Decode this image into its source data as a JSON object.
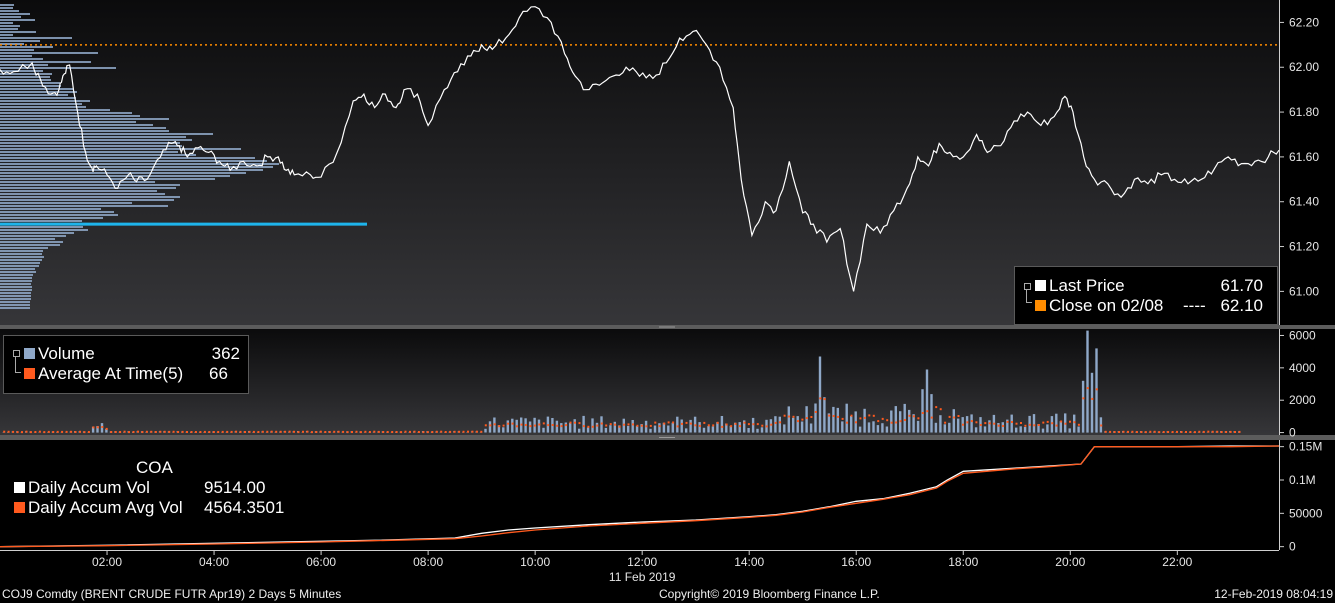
{
  "footer": {
    "ticker": "COJ9 Comdty (BRENT CRUDE FUTR  Apr19) 2 Days 5 Minutes",
    "copyright": "Copyright© 2019 Bloomberg Finance L.P.",
    "timestamp": "12-Feb-2019 08:04:19"
  },
  "colors": {
    "price_line": "#ffffff",
    "close_line": "#ff8c00",
    "volume_profile": "#8fa8c8",
    "poc_line": "#1eb4ec",
    "volume_bar": "#8fa8c8",
    "avg_dot": "#ff5a1e",
    "accum_vol": "#ffffff",
    "accum_avg": "#ff5a1e"
  },
  "legends": {
    "price": {
      "last_label": "Last Price",
      "last_value": "61.70",
      "close_label": "Close on 02/08",
      "close_sep": "----",
      "close_value": "62.10"
    },
    "volume": {
      "vol_label": "Volume",
      "vol_value": "362",
      "avg_label": "Average At Time(5)",
      "avg_value": "66"
    },
    "accum": {
      "header": "COA",
      "daily_label": "Daily Accum Vol",
      "daily_value": "9514.00",
      "avg_label": "Daily Accum Avg Vol",
      "avg_value": "4564.3501"
    }
  },
  "chart_data": [
    {
      "type": "line",
      "panel": "price",
      "xlim": [
        0.0,
        23.9
      ],
      "ylim": [
        60.85,
        62.3
      ],
      "yticks": [
        "62.20",
        "62.00",
        "61.80",
        "61.60",
        "61.40",
        "61.20",
        "61.00"
      ],
      "x_date_label": "11 Feb 2019",
      "xticks": [
        "02:00",
        "04:00",
        "06:00",
        "08:00",
        "10:00",
        "12:00",
        "14:00",
        "16:00",
        "18:00",
        "20:00",
        "22:00"
      ],
      "close_value": 62.1,
      "poc_value": 61.3,
      "series": [
        {
          "name": "Last Price",
          "x": [
            0.0,
            0.25,
            0.6,
            0.75,
            0.95,
            1.1,
            1.2,
            1.3,
            1.45,
            1.6,
            1.72,
            1.8,
            2.0,
            2.2,
            2.4,
            2.55,
            2.75,
            3.0,
            3.2,
            3.35,
            3.5,
            3.7,
            3.9,
            4.1,
            4.3,
            4.55,
            4.8,
            5.0,
            5.2,
            5.35,
            5.5,
            5.8,
            6.0,
            6.3,
            6.6,
            6.8,
            7.0,
            7.2,
            7.4,
            7.55,
            7.8,
            8.0,
            8.3,
            8.55,
            8.8,
            9.0,
            9.2,
            9.45,
            9.7,
            10.0,
            10.3,
            10.55,
            10.75,
            10.95,
            11.2,
            11.45,
            11.7,
            11.95,
            12.2,
            12.45,
            12.7,
            12.95,
            13.2,
            13.45,
            13.7,
            13.85,
            14.05,
            14.3,
            14.5,
            14.75,
            15.0,
            15.2,
            15.45,
            15.7,
            15.95,
            16.2,
            16.45,
            16.7,
            16.95,
            17.15,
            17.35,
            17.55,
            17.75,
            18.0,
            18.25,
            18.45,
            18.7,
            18.95,
            19.2,
            19.45,
            19.7,
            19.9,
            20.05,
            20.25,
            20.45,
            20.7,
            20.95,
            21.2,
            21.45,
            21.7,
            21.95,
            22.2,
            22.45,
            22.7,
            22.95,
            23.2,
            23.45,
            23.7,
            23.9
          ],
          "y": [
            61.99,
            61.98,
            62.02,
            61.95,
            61.88,
            61.9,
            61.97,
            62.01,
            61.8,
            61.62,
            61.55,
            61.56,
            61.52,
            61.46,
            61.52,
            61.49,
            61.5,
            61.6,
            61.66,
            61.65,
            61.6,
            61.64,
            61.62,
            61.58,
            61.54,
            61.58,
            61.56,
            61.6,
            61.6,
            61.54,
            61.52,
            61.52,
            61.51,
            61.62,
            61.85,
            61.88,
            61.82,
            61.88,
            61.82,
            61.9,
            61.88,
            61.74,
            61.9,
            61.98,
            62.05,
            62.1,
            62.08,
            62.13,
            62.22,
            62.27,
            62.2,
            62.06,
            61.96,
            61.9,
            61.92,
            61.96,
            62.0,
            61.96,
            61.95,
            62.02,
            62.13,
            62.16,
            62.1,
            62.0,
            61.82,
            61.5,
            61.25,
            61.4,
            61.36,
            61.58,
            61.35,
            61.3,
            61.22,
            61.28,
            61.0,
            61.3,
            61.26,
            61.36,
            61.46,
            61.6,
            61.56,
            61.66,
            61.62,
            61.6,
            61.7,
            61.62,
            61.65,
            61.76,
            61.8,
            61.74,
            61.78,
            61.87,
            61.8,
            61.6,
            61.5,
            61.48,
            61.42,
            61.5,
            61.48,
            61.52,
            61.5,
            61.48,
            61.5,
            61.55,
            61.6,
            61.57,
            61.58,
            61.6,
            61.63
          ]
        }
      ]
    },
    {
      "type": "bar",
      "panel": "volume",
      "ylim": [
        -150,
        6400
      ],
      "yticks": [
        "6000",
        "4000",
        "2000",
        "0"
      ],
      "series": [
        {
          "name": "Volume"
        },
        {
          "name": "Average At Time(5)"
        }
      ]
    },
    {
      "type": "line",
      "panel": "accum",
      "ylim": [
        -5000,
        160000
      ],
      "yticks": [
        "0.15M",
        "0.1M",
        "50000",
        "0"
      ],
      "series": [
        {
          "name": "Daily Accum Vol",
          "x": [
            0.0,
            2.0,
            4.0,
            6.0,
            7.0,
            8.5,
            9.0,
            9.5,
            10.0,
            11.0,
            12.0,
            13.0,
            14.0,
            14.5,
            15.0,
            15.5,
            16.0,
            16.5,
            17.0,
            17.5,
            17.7,
            18.0,
            19.0,
            19.6,
            20.2,
            20.45,
            21.0,
            22.0,
            23.0,
            23.9
          ],
          "y": [
            0,
            2000,
            5000,
            8000,
            9500,
            13000,
            20000,
            25000,
            28000,
            33000,
            37000,
            40000,
            45000,
            48000,
            53000,
            60000,
            68000,
            72000,
            80000,
            90000,
            100000,
            113000,
            118000,
            121000,
            124000,
            150000,
            150000,
            150000,
            151000,
            151000
          ]
        },
        {
          "name": "Daily Accum Avg Vol",
          "x": [
            0.0,
            2.0,
            4.0,
            6.0,
            7.0,
            8.5,
            9.0,
            9.5,
            10.0,
            11.0,
            12.0,
            13.0,
            14.0,
            14.5,
            15.0,
            15.5,
            16.0,
            16.5,
            17.0,
            17.5,
            17.7,
            18.0,
            19.0,
            19.6,
            20.2,
            20.45,
            21.0,
            22.0,
            23.0,
            23.9
          ],
          "y": [
            0,
            1500,
            4000,
            7000,
            9000,
            12000,
            16000,
            21000,
            25000,
            31000,
            35000,
            39000,
            44000,
            47000,
            52000,
            59000,
            65000,
            71000,
            78000,
            88000,
            98000,
            110000,
            117000,
            120000,
            124000,
            150000,
            150000,
            150000,
            150000,
            151000
          ]
        }
      ]
    }
  ]
}
